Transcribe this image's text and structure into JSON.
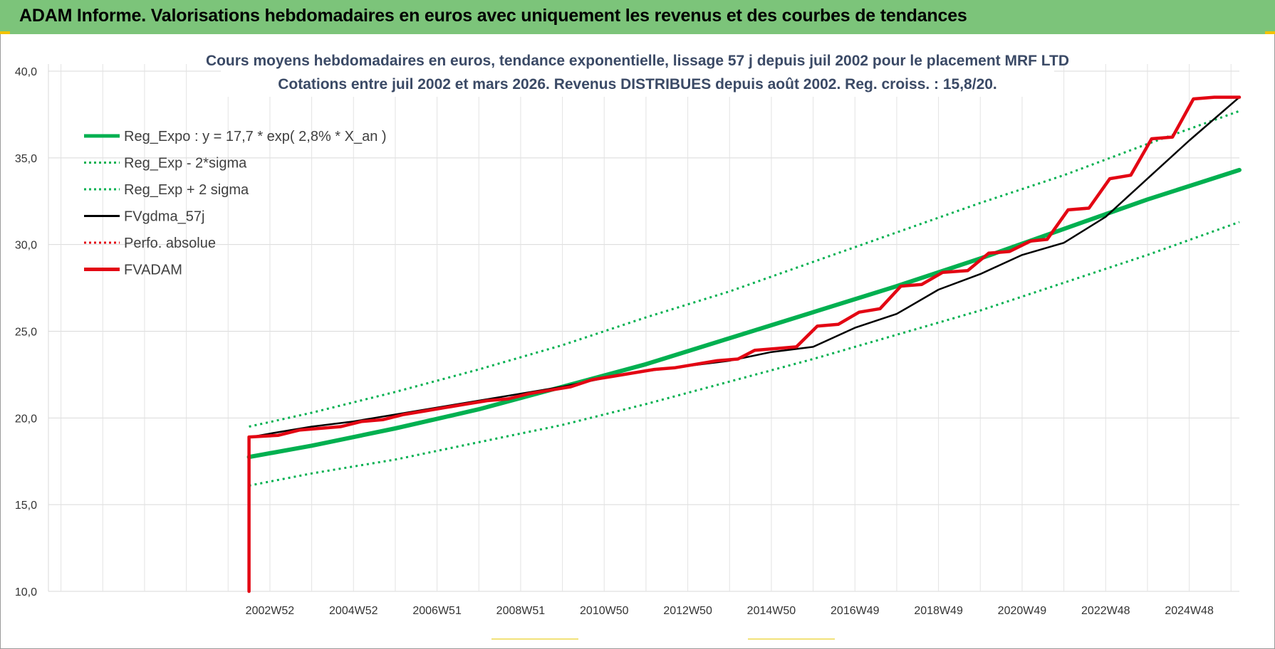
{
  "header": {
    "title": "ADAM Informe. Valorisations hebdomadaires en euros avec uniquement les revenus et des courbes de tendances"
  },
  "colors": {
    "header_bg": "#7cc47a",
    "green": "#00b050",
    "red": "#e30613",
    "black": "#000000",
    "title": "#3b4a66",
    "grid": "#d9d9d9"
  },
  "chart_data": {
    "type": "line",
    "title": "Cours moyens hebdomadaires en euros, tendance exponentielle, lissage 57 j depuis juil 2002 pour le placement MRF LTD",
    "subtitle": "Cotations entre juil 2002 et mars 2026. Revenus DISTRIBUES depuis août 2002. Reg. croiss. : 15,8/20.",
    "ylim": [
      10,
      40
    ],
    "yticks": [
      "10,0",
      "15,0",
      "20,0",
      "25,0",
      "30,0",
      "35,0",
      "40,0"
    ],
    "x_range_years": [
      1997.7,
      2026.2
    ],
    "xtick_labels": [
      "2002W52",
      "2004W52",
      "2006W51",
      "2008W51",
      "2010W50",
      "2012W50",
      "2014W50",
      "2016W49",
      "2018W49",
      "2020W49",
      "2022W48",
      "2024W48"
    ],
    "xtick_years": [
      2003.0,
      2005.0,
      2007.0,
      2009.0,
      2011.0,
      2013.0,
      2015.0,
      2017.0,
      2019.0,
      2021.0,
      2023.0,
      2025.0
    ],
    "grid": true,
    "legend_position": "top-left",
    "series": [
      {
        "name": "Reg_Expo : y = 17,7 * exp( 2,8% *  X_an )",
        "color": "#00b050",
        "style": "solid-thick",
        "x": [
          2002.5,
          2004.0,
          2006.0,
          2008.0,
          2010.0,
          2012.0,
          2014.0,
          2016.0,
          2018.0,
          2020.0,
          2022.0,
          2024.0,
          2026.2
        ],
        "y": [
          17.75,
          18.4,
          19.4,
          20.5,
          21.8,
          23.1,
          24.6,
          26.1,
          27.6,
          29.2,
          30.9,
          32.6,
          34.3
        ]
      },
      {
        "name": "Reg_Exp - 2*sigma",
        "color": "#00b050",
        "style": "dotted",
        "x": [
          2002.5,
          2004.0,
          2006.0,
          2008.0,
          2010.0,
          2012.0,
          2014.0,
          2016.0,
          2018.0,
          2020.0,
          2022.0,
          2024.0,
          2026.2
        ],
        "y": [
          16.1,
          16.8,
          17.6,
          18.6,
          19.6,
          20.8,
          22.1,
          23.4,
          24.8,
          26.2,
          27.8,
          29.4,
          31.3
        ]
      },
      {
        "name": "Reg_Exp + 2 sigma",
        "color": "#00b050",
        "style": "dotted",
        "x": [
          2002.5,
          2004.0,
          2006.0,
          2008.0,
          2010.0,
          2012.0,
          2014.0,
          2016.0,
          2018.0,
          2020.0,
          2022.0,
          2024.0,
          2026.2
        ],
        "y": [
          19.5,
          20.3,
          21.5,
          22.8,
          24.2,
          25.8,
          27.3,
          29.0,
          30.7,
          32.4,
          34.0,
          35.8,
          37.7
        ]
      },
      {
        "name": "FVgdma_57j",
        "color": "#000000",
        "style": "solid",
        "x": [
          2002.55,
          2003.0,
          2004.0,
          2005.0,
          2006.0,
          2007.0,
          2008.0,
          2009.0,
          2010.0,
          2011.0,
          2012.0,
          2013.0,
          2014.0,
          2015.0,
          2016.0,
          2017.0,
          2018.0,
          2019.0,
          2020.0,
          2021.0,
          2022.0,
          2023.0,
          2024.0,
          2025.0,
          2026.2
        ],
        "y": [
          18.9,
          19.1,
          19.5,
          19.8,
          20.2,
          20.6,
          21.0,
          21.4,
          21.8,
          22.3,
          22.7,
          23.0,
          23.3,
          23.8,
          24.1,
          25.2,
          26.0,
          27.4,
          28.3,
          29.4,
          30.1,
          31.6,
          33.8,
          36.0,
          38.5
        ]
      },
      {
        "name": "Perfo. absolue",
        "color": "#e30613",
        "style": "dotted",
        "x": [],
        "y": []
      },
      {
        "name": "FVADAM",
        "color": "#e30613",
        "style": "step-thick",
        "x": [
          2002.5,
          2002.5,
          2003.2,
          2003.7,
          2004.7,
          2005.2,
          2005.7,
          2006.2,
          2006.7,
          2007.2,
          2007.7,
          2008.2,
          2008.7,
          2009.2,
          2009.7,
          2010.2,
          2010.7,
          2011.2,
          2011.7,
          2012.2,
          2012.7,
          2013.2,
          2013.7,
          2014.2,
          2014.6,
          2015.1,
          2015.6,
          2016.1,
          2016.6,
          2017.1,
          2017.6,
          2018.1,
          2018.6,
          2019.1,
          2019.7,
          2020.2,
          2020.7,
          2021.2,
          2021.6,
          2022.1,
          2022.6,
          2023.1,
          2023.6,
          2024.1,
          2024.6,
          2025.1,
          2025.6,
          2026.2
        ],
        "y": [
          10.0,
          18.9,
          19.0,
          19.3,
          19.5,
          19.8,
          19.9,
          20.2,
          20.4,
          20.6,
          20.8,
          21.0,
          21.1,
          21.4,
          21.6,
          21.8,
          22.2,
          22.4,
          22.6,
          22.8,
          22.9,
          23.1,
          23.3,
          23.4,
          23.9,
          24.0,
          24.1,
          25.3,
          25.4,
          26.1,
          26.3,
          27.6,
          27.7,
          28.4,
          28.5,
          29.5,
          29.6,
          30.2,
          30.3,
          32.0,
          32.1,
          33.8,
          34.0,
          36.1,
          36.2,
          38.4,
          38.5,
          38.5
        ]
      }
    ]
  }
}
